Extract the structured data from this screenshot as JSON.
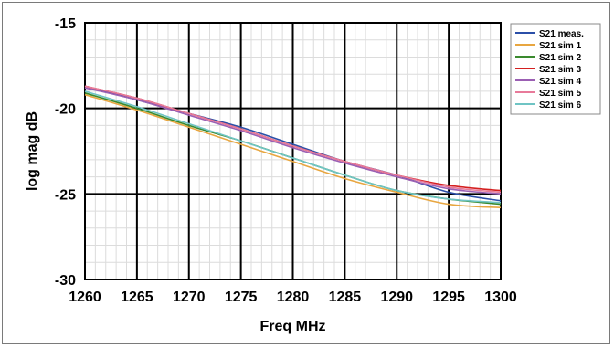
{
  "chart_data": {
    "type": "line",
    "title": "",
    "xlabel": "Freq MHz",
    "ylabel": "log mag dB",
    "xlim": [
      1260,
      1300
    ],
    "ylim": [
      -30,
      -15
    ],
    "x_ticks": [
      1260,
      1265,
      1270,
      1275,
      1280,
      1285,
      1290,
      1295,
      1300
    ],
    "y_ticks": [
      -15,
      -20,
      -25,
      -30
    ],
    "x_tick_labels": [
      "1260",
      "1265",
      "1270",
      "1275",
      "1280",
      "1285",
      "1290",
      "1295",
      "1300"
    ],
    "y_tick_labels": [
      "-15",
      "-20",
      "-25",
      "-30"
    ],
    "grid": true,
    "legend_position": "top-right",
    "x": [
      1260,
      1265,
      1270,
      1275,
      1280,
      1285,
      1290,
      1295,
      1300
    ],
    "series": [
      {
        "name": "S21 meas.",
        "color": "#2b4fa8",
        "values": [
          -18.7,
          -19.5,
          -20.3,
          -21.1,
          -22.1,
          -23.1,
          -23.9,
          -24.9,
          -25.4
        ]
      },
      {
        "name": "S21 sim 1",
        "color": "#e8a640",
        "values": [
          -19.2,
          -20.1,
          -21.1,
          -22.1,
          -23.1,
          -24.1,
          -24.9,
          -25.6,
          -25.8
        ]
      },
      {
        "name": "S21 sim 2",
        "color": "#3a8a2e",
        "values": [
          -19.1,
          -20.0,
          -21.0,
          -21.9,
          -22.9,
          -23.9,
          -24.8,
          -25.3,
          -25.6
        ]
      },
      {
        "name": "S21 sim 3",
        "color": "#d42020",
        "values": [
          -18.7,
          -19.4,
          -20.3,
          -21.2,
          -22.2,
          -23.1,
          -23.9,
          -24.5,
          -24.8
        ]
      },
      {
        "name": "S21 sim 4",
        "color": "#9b5fb3",
        "values": [
          -18.8,
          -19.5,
          -20.4,
          -21.3,
          -22.3,
          -23.2,
          -24.0,
          -24.7,
          -25.0
        ]
      },
      {
        "name": "S21 sim 5",
        "color": "#e87a9a",
        "values": [
          -18.7,
          -19.4,
          -20.3,
          -21.2,
          -22.2,
          -23.1,
          -23.9,
          -24.6,
          -24.9
        ]
      },
      {
        "name": "S21 sim 6",
        "color": "#6fc4c4",
        "values": [
          -19.0,
          -19.9,
          -20.9,
          -21.9,
          -22.9,
          -23.9,
          -24.8,
          -25.3,
          -25.5
        ]
      }
    ]
  }
}
